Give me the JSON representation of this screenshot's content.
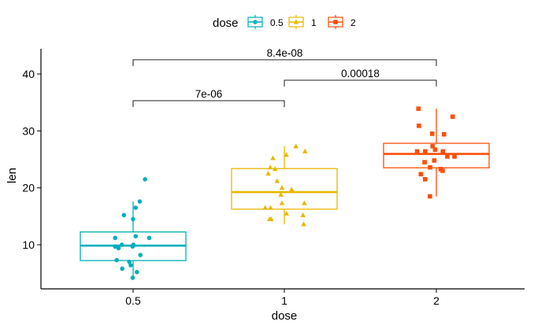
{
  "chart_data": {
    "type": "box",
    "xlabel": "dose",
    "ylabel": "len",
    "ylim": [
      2.5,
      44
    ],
    "yticks": [
      10,
      20,
      30,
      40
    ],
    "categories": [
      "0.5",
      "1",
      "2"
    ],
    "legend": {
      "title": "dose",
      "position": "top",
      "entries": [
        "0.5",
        "1",
        "2"
      ]
    },
    "colors": {
      "0.5": "#00AFBB",
      "1": "#E7B800",
      "2": "#FC4E07"
    },
    "boxes": [
      {
        "cat": "0.5",
        "min": 4.2,
        "q1": 7.225,
        "median": 9.85,
        "q3": 12.25,
        "max": 17.6
      },
      {
        "cat": "1",
        "min": 13.6,
        "q1": 16.25,
        "median": 19.25,
        "q3": 23.375,
        "max": 27.3
      },
      {
        "cat": "2",
        "min": 18.5,
        "q1": 23.525,
        "median": 25.95,
        "q3": 27.825,
        "max": 33.9
      }
    ],
    "points": {
      "0.5": [
        4.2,
        11.5,
        7.3,
        5.8,
        6.4,
        10,
        11.2,
        11.2,
        5.2,
        7,
        15.2,
        21.5,
        17.6,
        9.7,
        14.5,
        10,
        8.2,
        9.4,
        16.5,
        9.7
      ],
      "1": [
        16.5,
        16.5,
        15.2,
        17.3,
        22.5,
        17.3,
        13.6,
        14.5,
        18.8,
        15.5,
        19.7,
        23.3,
        23.6,
        26.4,
        20,
        25.2,
        25.8,
        21.2,
        14.5,
        27.3
      ],
      "2": [
        23.6,
        18.5,
        33.9,
        25.5,
        26.4,
        32.5,
        26.7,
        21.5,
        23.3,
        29.5,
        25.5,
        26.4,
        22.4,
        24.5,
        24.8,
        30.9,
        26.4,
        27.3,
        29.4,
        23
      ]
    },
    "comparisons": [
      {
        "from": "0.5",
        "to": "1",
        "y": 35.3,
        "label": "7e-06"
      },
      {
        "from": "1",
        "to": "2",
        "y": 38.9,
        "label": "0.00018"
      },
      {
        "from": "0.5",
        "to": "2",
        "y": 42.5,
        "label": "8.4e-08"
      }
    ]
  }
}
